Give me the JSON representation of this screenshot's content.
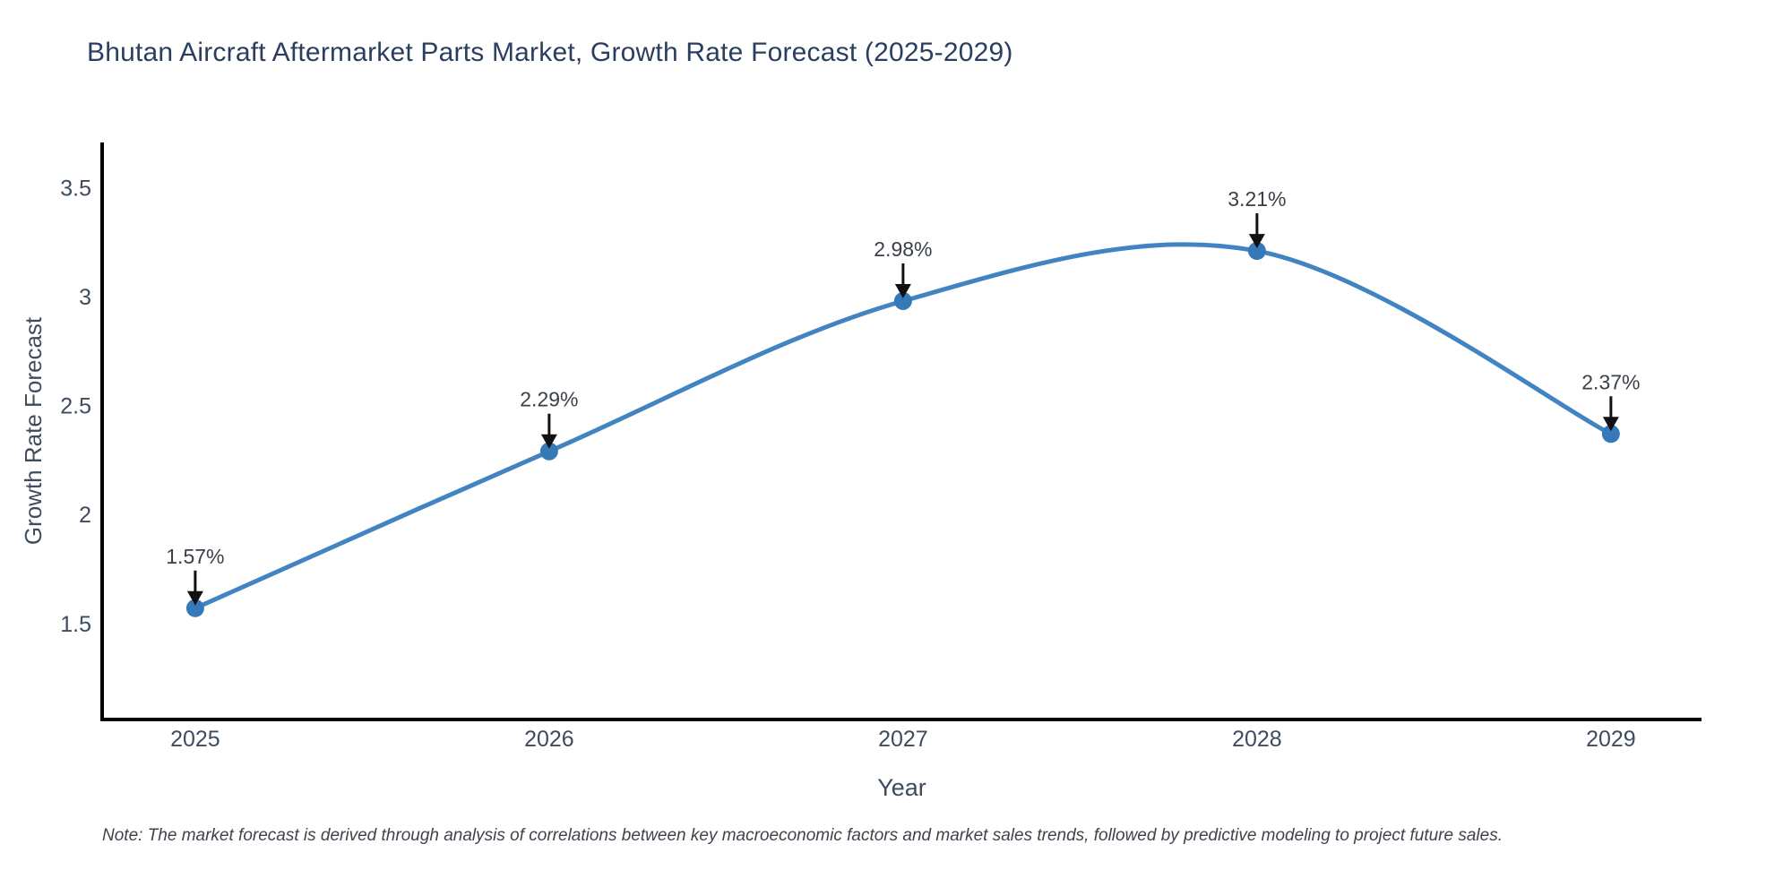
{
  "chart_data": {
    "type": "line",
    "line_shape": "spline",
    "title": "Bhutan Aircraft Aftermarket Parts Market, Growth Rate Forecast (2025-2029)",
    "xlabel": "Year",
    "ylabel": "Growth Rate Forecast",
    "x": [
      2025,
      2026,
      2027,
      2028,
      2029
    ],
    "y": [
      1.57,
      2.29,
      2.98,
      3.21,
      2.37
    ],
    "point_labels": [
      "1.57%",
      "2.29%",
      "2.98%",
      "3.21%",
      "2.37%"
    ],
    "x_tick_labels": [
      "2025",
      "2026",
      "2027",
      "2028",
      "2029"
    ],
    "y_tick_values": [
      1.5,
      2,
      2.5,
      3,
      3.5
    ],
    "y_tick_labels": [
      "1.5",
      "2",
      "2.5",
      "3",
      "3.5"
    ],
    "xlim": [
      2024.737,
      2029.256
    ],
    "ylim": [
      1.059,
      3.708
    ],
    "grid": false,
    "legend": false,
    "note": "Note: The market forecast is derived through analysis of correlations between key macroeconomic factors and market sales trends, followed by predictive modeling to project future sales.",
    "colors": {
      "line": "#4184c1",
      "marker": "#3579b8",
      "title": "#2a3f5f",
      "tick": "#3e4c5e",
      "axis_line": "#000000",
      "annotation_text": "#3a4049",
      "annotation_arrow": "#111111",
      "note_text": "#3f434b",
      "background": "#ffffff"
    }
  }
}
